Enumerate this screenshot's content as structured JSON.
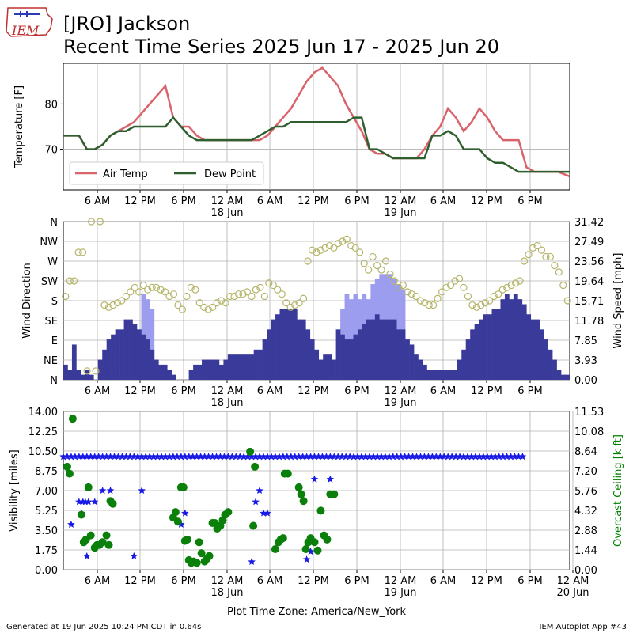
{
  "header": {
    "logo_text": "IEM",
    "title_line1": "[JRO] Jackson",
    "title_line2": "Recent Time Series 2025 Jun 17 - 2025 Jun 20"
  },
  "footer": {
    "generated": "Generated at 19 Jun 2025 10:24 PM CDT in 0.64s",
    "app": "IEM Autoplot App #43",
    "timezone_label": "Plot Time Zone: America/New_York"
  },
  "colors": {
    "air_temp": "#d9636a",
    "dew_point": "#2f5f2f",
    "wind_dir": "#b5b56a",
    "wind_speed": "#3a3a9a",
    "wind_gust": "#9d9def",
    "visibility": "#1a1ae6",
    "ceiling": "#0a800a",
    "ceiling_axis": "#008000"
  },
  "chart_data": [
    {
      "type": "line",
      "ylabel": "Temperature [F]",
      "ylim": [
        61,
        89
      ],
      "xlim": [
        0,
        64.5
      ],
      "x_tick_labels": [
        "6 AM",
        "12 PM",
        "6 PM",
        "12 AM\n18 Jun",
        "6 AM",
        "12 PM",
        "6 PM",
        "12 AM\n19 Jun",
        "6 AM",
        "12 PM",
        "6 PM"
      ],
      "y_tick_labels": [
        "70",
        "80"
      ],
      "grid": true,
      "legend_position": "lower-left",
      "series": [
        {
          "name": "Air Temp",
          "x": [
            0,
            2,
            3,
            4,
            5,
            6,
            7,
            8,
            9,
            10,
            11,
            12,
            13,
            14,
            15,
            16,
            17,
            18,
            19,
            20,
            21,
            22,
            23,
            24,
            25,
            26,
            27,
            28,
            29,
            30,
            31,
            32,
            33,
            34,
            35,
            36,
            37,
            38,
            39,
            40,
            41,
            42,
            43,
            44,
            45,
            46,
            47,
            48,
            49,
            50,
            51,
            52,
            53,
            54,
            55,
            56,
            57,
            58,
            59,
            60,
            61,
            62,
            63,
            64.5
          ],
          "y": [
            73,
            73,
            70,
            70,
            71,
            73,
            74,
            75,
            76,
            78,
            80,
            82,
            84,
            77,
            75,
            75,
            73,
            72,
            72,
            72,
            72,
            72,
            72,
            72,
            72,
            73,
            75,
            77,
            79,
            82,
            85,
            87,
            88,
            86,
            84,
            80,
            77,
            74,
            70,
            69,
            69,
            68,
            68,
            68,
            68,
            70,
            73,
            75,
            79,
            77,
            74,
            76,
            79,
            77,
            74,
            72,
            72,
            72,
            66,
            65,
            65,
            65,
            65,
            64
          ]
        },
        {
          "name": "Dew Point",
          "x": [
            0,
            2,
            3,
            4,
            5,
            6,
            7,
            8,
            9,
            10,
            11,
            12,
            13,
            14,
            15,
            16,
            17,
            18,
            19,
            20,
            21,
            22,
            23,
            24,
            25,
            26,
            27,
            28,
            29,
            30,
            31,
            32,
            33,
            34,
            35,
            36,
            37,
            38,
            39,
            40,
            41,
            42,
            43,
            44,
            45,
            46,
            47,
            48,
            49,
            50,
            51,
            52,
            53,
            54,
            55,
            56,
            57,
            58,
            59,
            60,
            61,
            62,
            63,
            64.5
          ],
          "y": [
            73,
            73,
            70,
            70,
            71,
            73,
            74,
            74,
            75,
            75,
            75,
            75,
            75,
            77,
            75,
            73,
            72,
            72,
            72,
            72,
            72,
            72,
            72,
            72,
            73,
            74,
            75,
            75,
            76,
            76,
            76,
            76,
            76,
            76,
            76,
            76,
            77,
            77,
            70,
            70,
            69,
            68,
            68,
            68,
            68,
            68,
            73,
            73,
            74,
            73,
            70,
            70,
            70,
            68,
            67,
            67,
            66,
            65,
            65,
            65,
            65,
            65,
            65,
            65
          ]
        }
      ]
    },
    {
      "type": "bar",
      "ylabel": "Wind Direction",
      "y2label": "Wind Speed [mph]",
      "xlim": [
        0,
        64.5
      ],
      "y_tick_labels": [
        "N",
        "NE",
        "E",
        "SE",
        "S",
        "SW",
        "W",
        "NW",
        "N"
      ],
      "y2_tick_labels": [
        "0.00",
        "3.93",
        "7.85",
        "11.78",
        "15.71",
        "19.64",
        "23.56",
        "27.49",
        "31.42"
      ],
      "grid": true,
      "wind_speed_mph": [
        3,
        2,
        7,
        2,
        1,
        2,
        1,
        0,
        4,
        6,
        8,
        9,
        10,
        10,
        12,
        12,
        11,
        10,
        9,
        8,
        6,
        4,
        3,
        3,
        2,
        1,
        0,
        0,
        0,
        2,
        3,
        3,
        4,
        4,
        4,
        4,
        3,
        4,
        5,
        5,
        5,
        5,
        5,
        5,
        6,
        6,
        8,
        10,
        12,
        13,
        14,
        14,
        14,
        14,
        12,
        12,
        10,
        8,
        6,
        4,
        5,
        5,
        4,
        10,
        9,
        8,
        8,
        9,
        10,
        11,
        12,
        12,
        13,
        12,
        12,
        12,
        12,
        10,
        10,
        8,
        7,
        5,
        4,
        3,
        2,
        2,
        2,
        2,
        2,
        2,
        2,
        4,
        6,
        8,
        10,
        11,
        12,
        13,
        13,
        14,
        14,
        16,
        17,
        16,
        17,
        16,
        15,
        13,
        12,
        12,
        10,
        8,
        6,
        4,
        2,
        1,
        1
      ],
      "wind_gust_mph": [
        0,
        0,
        0,
        0,
        0,
        0,
        0,
        0,
        0,
        0,
        0,
        0,
        0,
        0,
        0,
        0,
        0,
        0,
        17,
        16,
        14,
        0,
        0,
        0,
        0,
        0,
        0,
        0,
        0,
        0,
        0,
        0,
        0,
        0,
        0,
        0,
        0,
        0,
        0,
        0,
        0,
        0,
        0,
        0,
        0,
        0,
        0,
        0,
        0,
        0,
        0,
        0,
        0,
        0,
        0,
        0,
        0,
        0,
        0,
        0,
        0,
        0,
        0,
        0,
        14,
        17,
        16,
        17,
        16,
        17,
        16,
        19,
        20,
        21,
        21,
        21,
        20,
        19,
        18,
        0,
        0,
        0,
        0,
        0,
        0,
        0,
        0,
        0,
        0,
        0,
        0,
        0,
        0,
        0,
        0,
        0,
        0,
        0,
        0,
        0,
        0,
        0,
        0,
        0,
        0,
        0,
        0,
        0,
        0,
        0,
        0,
        0,
        0,
        0,
        0,
        0,
        0
      ],
      "wind_dir_deg": [
        190,
        225,
        225,
        290,
        290,
        20,
        360,
        20,
        360,
        170,
        165,
        170,
        175,
        180,
        190,
        200,
        210,
        200,
        215,
        205,
        210,
        210,
        205,
        200,
        190,
        195,
        170,
        160,
        190,
        210,
        205,
        175,
        165,
        160,
        165,
        175,
        180,
        175,
        190,
        190,
        195,
        195,
        200,
        190,
        205,
        210,
        190,
        220,
        215,
        205,
        195,
        175,
        165,
        170,
        175,
        185,
        270,
        295,
        290,
        295,
        300,
        305,
        300,
        310,
        315,
        320,
        305,
        300,
        290,
        265,
        250,
        280,
        260,
        250,
        270,
        240,
        225,
        210,
        215,
        200,
        195,
        190,
        180,
        175,
        170,
        170,
        185,
        200,
        210,
        215,
        225,
        230,
        210,
        190,
        170,
        165,
        170,
        175,
        180,
        190,
        195,
        205,
        210,
        215,
        220,
        225,
        270,
        285,
        300,
        305,
        295,
        280,
        280,
        260,
        245,
        215,
        180
      ]
    },
    {
      "type": "scatter",
      "ylabel": "Visibility [miles]",
      "y2label": "Overcast Ceiling [k ft]",
      "xlim": [
        0,
        64.5
      ],
      "ylim": [
        0,
        14
      ],
      "y_tick_labels": [
        "0.00",
        "1.75",
        "3.50",
        "5.25",
        "7.00",
        "8.75",
        "10.50",
        "12.25",
        "14.00"
      ],
      "y2_tick_labels": [
        "0.00",
        "1.44",
        "2.88",
        "4.32",
        "5.76",
        "7.20",
        "8.64",
        "10.08",
        "11.53"
      ],
      "x_tick_labels": [
        "6 AM",
        "12 PM",
        "6 PM",
        "12 AM\n18 Jun",
        "6 AM",
        "12 PM",
        "6 PM",
        "12 AM\n19 Jun",
        "6 AM",
        "12 PM",
        "6 PM",
        "12 AM\n20 Jun"
      ],
      "grid": true,
      "visibility_points": [
        [
          1,
          4
        ],
        [
          2,
          6
        ],
        [
          2.3,
          5
        ],
        [
          2.5,
          6
        ],
        [
          2.8,
          6
        ],
        [
          3,
          1.2
        ],
        [
          3.2,
          6
        ],
        [
          4,
          6
        ],
        [
          5,
          7
        ],
        [
          6,
          7
        ],
        [
          9,
          1.2
        ],
        [
          10,
          7
        ],
        [
          15,
          4
        ],
        [
          15.5,
          5
        ],
        [
          24,
          0.7
        ],
        [
          24.5,
          6
        ],
        [
          25,
          7
        ],
        [
          25.5,
          5
        ],
        [
          26,
          5
        ],
        [
          31,
          0.9
        ],
        [
          31.5,
          1.6
        ],
        [
          32,
          8
        ],
        [
          34,
          8
        ]
      ],
      "visibility_baseline": 10,
      "ceiling_points": [
        [
          0.5,
          7.5
        ],
        [
          0.8,
          7
        ],
        [
          1.2,
          11
        ],
        [
          2.3,
          4
        ],
        [
          2.6,
          2
        ],
        [
          2.9,
          2.2
        ],
        [
          3.2,
          6
        ],
        [
          3.5,
          2.5
        ],
        [
          4,
          1.6
        ],
        [
          4.3,
          1.8
        ],
        [
          4.6,
          1.8
        ],
        [
          5,
          2
        ],
        [
          5.5,
          2.5
        ],
        [
          5.8,
          1.8
        ],
        [
          6,
          5
        ],
        [
          6.3,
          4.8
        ],
        [
          14,
          3.8
        ],
        [
          14.3,
          4.2
        ],
        [
          14.6,
          3.5
        ],
        [
          15,
          6
        ],
        [
          15.3,
          6
        ],
        [
          15.5,
          2.1
        ],
        [
          15.8,
          2.2
        ],
        [
          16,
          0.7
        ],
        [
          16.3,
          0.5
        ],
        [
          16.6,
          0.6
        ],
        [
          17,
          0.5
        ],
        [
          17.3,
          2
        ],
        [
          17.6,
          1.2
        ],
        [
          18,
          0.6
        ],
        [
          18.3,
          0.8
        ],
        [
          18.6,
          1.0
        ],
        [
          19,
          3.4
        ],
        [
          19.3,
          3.4
        ],
        [
          19.6,
          3.0
        ],
        [
          20,
          3.2
        ],
        [
          20.3,
          3.6
        ],
        [
          20.6,
          4
        ],
        [
          21,
          4.2
        ],
        [
          23.8,
          8.6
        ],
        [
          24.2,
          3.2
        ],
        [
          24.4,
          7.5
        ],
        [
          27,
          1.5
        ],
        [
          27.4,
          2.0
        ],
        [
          27.7,
          2.2
        ],
        [
          28,
          2.3
        ],
        [
          28.2,
          7
        ],
        [
          28.6,
          7
        ],
        [
          30,
          6
        ],
        [
          30.3,
          5.5
        ],
        [
          30.6,
          5
        ],
        [
          30.9,
          1.5
        ],
        [
          31.2,
          2.0
        ],
        [
          31.5,
          2.3
        ],
        [
          32,
          2.0
        ],
        [
          32.4,
          1.4
        ],
        [
          32.8,
          4.3
        ],
        [
          33.2,
          2.5
        ],
        [
          33.6,
          2.2
        ],
        [
          34,
          5.5
        ],
        [
          34.5,
          5.5
        ]
      ]
    }
  ]
}
